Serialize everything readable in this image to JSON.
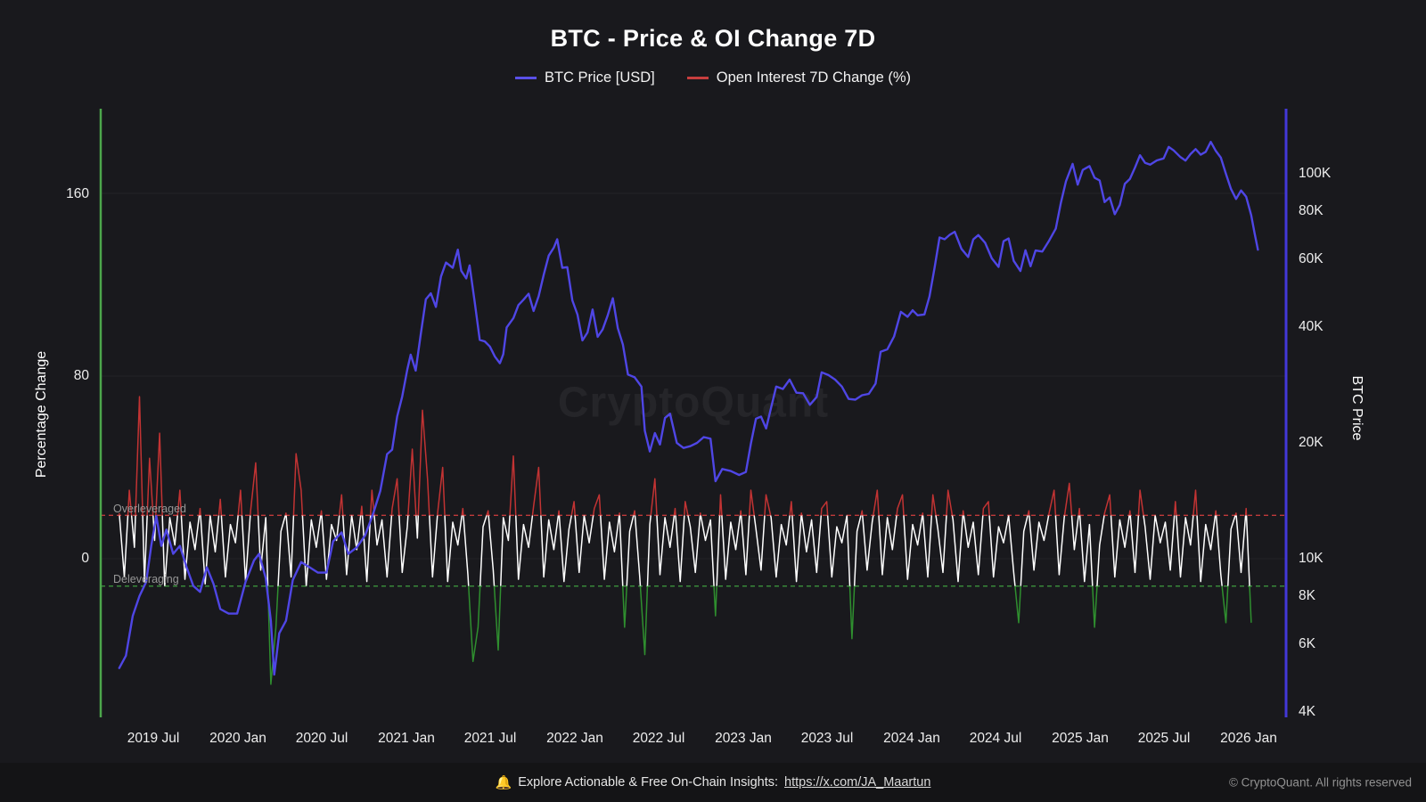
{
  "title": "BTC - Price & OI Change 7D",
  "legend": {
    "items": [
      {
        "label": "BTC Price [USD]",
        "color": "#5a50e8"
      },
      {
        "label": "Open Interest 7D Change (%)",
        "color": "#c73e3e"
      }
    ]
  },
  "left_axis": {
    "title": "Percentage Change",
    "ticks": [
      "0",
      "80",
      "160"
    ]
  },
  "right_axis": {
    "title": "BTC Price",
    "ticks": [
      "4K",
      "6K",
      "8K",
      "10K",
      "20K",
      "40K",
      "60K",
      "80K",
      "100K"
    ]
  },
  "x_axis": {
    "ticks": [
      "2019 Jul",
      "2020 Jan",
      "2020 Jul",
      "2021 Jan",
      "2021 Jul",
      "2022 Jan",
      "2022 Jul",
      "2023 Jan",
      "2023 Jul",
      "2024 Jan",
      "2024 Jul",
      "2025 Jan",
      "2025 Jul",
      "2026 Jan"
    ]
  },
  "annotations": {
    "overleveraged": {
      "label": "Overleveraged",
      "value_pct": 19,
      "color": "#c03a3a"
    },
    "deleveraging": {
      "label": "Deleveraging",
      "value_pct": -12,
      "color": "#3f9f3f"
    }
  },
  "watermark": "CryptoQuant",
  "footer": {
    "bell_icon": "🔔",
    "message": "Explore Actionable & Free On-Chain Insights:",
    "link": "https://x.com/JA_Maartun",
    "copyright": "© CryptoQuant. All rights reserved"
  },
  "chart_data": {
    "type": "line",
    "title": "BTC - Price & OI Change 7D",
    "x_domain": [
      2019.19,
      2026.22
    ],
    "x_tick_labels": [
      "2019 Jul",
      "2020 Jan",
      "2020 Jul",
      "2021 Jan",
      "2021 Jul",
      "2022 Jan",
      "2022 Jul",
      "2023 Jan",
      "2023 Jul",
      "2024 Jan",
      "2024 Jul",
      "2025 Jan",
      "2025 Jul",
      "2026 Jan"
    ],
    "left_axis": {
      "label": "Percentage Change",
      "range": [
        -70,
        197
      ],
      "ticks": [
        0,
        80,
        160
      ],
      "grid": true
    },
    "right_axis": {
      "label": "BTC Price",
      "scale": "log",
      "ticks_usd": [
        4000,
        6000,
        8000,
        10000,
        20000,
        40000,
        60000,
        80000,
        100000
      ]
    },
    "thresholds": {
      "overleveraged_pct": 19,
      "deleveraging_pct": -12
    },
    "legend_position": "top",
    "series": [
      {
        "name": "BTC Price [USD]",
        "axis": "right",
        "unit": "USD thousands",
        "color": "#4f46e5",
        "points": [
          [
            2019.3,
            5.2
          ],
          [
            2019.34,
            5.6
          ],
          [
            2019.38,
            7.1
          ],
          [
            2019.42,
            8.0
          ],
          [
            2019.46,
            8.7
          ],
          [
            2019.49,
            10.8
          ],
          [
            2019.52,
            12.9
          ],
          [
            2019.55,
            10.8
          ],
          [
            2019.58,
            11.9
          ],
          [
            2019.62,
            10.3
          ],
          [
            2019.66,
            10.8
          ],
          [
            2019.7,
            9.5
          ],
          [
            2019.74,
            8.5
          ],
          [
            2019.78,
            8.2
          ],
          [
            2019.82,
            9.5
          ],
          [
            2019.86,
            8.6
          ],
          [
            2019.9,
            7.4
          ],
          [
            2019.95,
            7.2
          ],
          [
            2020.0,
            7.2
          ],
          [
            2020.05,
            8.7
          ],
          [
            2020.1,
            9.9
          ],
          [
            2020.13,
            10.3
          ],
          [
            2020.17,
            8.9
          ],
          [
            2020.2,
            6.9
          ],
          [
            2020.22,
            5.0
          ],
          [
            2020.25,
            6.4
          ],
          [
            2020.29,
            6.9
          ],
          [
            2020.33,
            8.8
          ],
          [
            2020.38,
            9.8
          ],
          [
            2020.43,
            9.5
          ],
          [
            2020.48,
            9.2
          ],
          [
            2020.53,
            9.2
          ],
          [
            2020.57,
            11.1
          ],
          [
            2020.62,
            11.7
          ],
          [
            2020.66,
            10.3
          ],
          [
            2020.71,
            10.7
          ],
          [
            2020.76,
            11.5
          ],
          [
            2020.81,
            13.2
          ],
          [
            2020.85,
            15.0
          ],
          [
            2020.89,
            18.7
          ],
          [
            2020.92,
            19.2
          ],
          [
            2020.95,
            23.4
          ],
          [
            2020.98,
            26.4
          ],
          [
            2021.01,
            31.0
          ],
          [
            2021.03,
            33.9
          ],
          [
            2021.06,
            30.8
          ],
          [
            2021.09,
            38.3
          ],
          [
            2021.12,
            47.2
          ],
          [
            2021.15,
            48.9
          ],
          [
            2021.18,
            45.1
          ],
          [
            2021.21,
            54.1
          ],
          [
            2021.24,
            58.8
          ],
          [
            2021.28,
            57.0
          ],
          [
            2021.31,
            63.5
          ],
          [
            2021.33,
            56.0
          ],
          [
            2021.36,
            53.5
          ],
          [
            2021.38,
            57.8
          ],
          [
            2021.41,
            46.5
          ],
          [
            2021.44,
            37.0
          ],
          [
            2021.47,
            36.7
          ],
          [
            2021.5,
            35.6
          ],
          [
            2021.53,
            33.5
          ],
          [
            2021.56,
            32.2
          ],
          [
            2021.58,
            34.0
          ],
          [
            2021.6,
            39.9
          ],
          [
            2021.64,
            42.2
          ],
          [
            2021.67,
            45.6
          ],
          [
            2021.7,
            47.1
          ],
          [
            2021.73,
            48.8
          ],
          [
            2021.76,
            44.0
          ],
          [
            2021.79,
            48.1
          ],
          [
            2021.82,
            54.7
          ],
          [
            2021.85,
            61.3
          ],
          [
            2021.88,
            64.3
          ],
          [
            2021.9,
            67.6
          ],
          [
            2021.93,
            57.0
          ],
          [
            2021.96,
            57.2
          ],
          [
            2021.99,
            46.9
          ],
          [
            2022.02,
            43.1
          ],
          [
            2022.05,
            36.9
          ],
          [
            2022.08,
            38.7
          ],
          [
            2022.11,
            44.4
          ],
          [
            2022.14,
            37.7
          ],
          [
            2022.17,
            39.4
          ],
          [
            2022.2,
            42.9
          ],
          [
            2022.23,
            47.5
          ],
          [
            2022.26,
            39.7
          ],
          [
            2022.29,
            36.0
          ],
          [
            2022.32,
            30.1
          ],
          [
            2022.36,
            29.6
          ],
          [
            2022.4,
            28.0
          ],
          [
            2022.42,
            21.5
          ],
          [
            2022.45,
            19.0
          ],
          [
            2022.48,
            21.2
          ],
          [
            2022.51,
            19.8
          ],
          [
            2022.54,
            23.2
          ],
          [
            2022.57,
            23.8
          ],
          [
            2022.61,
            20.0
          ],
          [
            2022.65,
            19.4
          ],
          [
            2022.69,
            19.6
          ],
          [
            2022.73,
            20.0
          ],
          [
            2022.77,
            20.7
          ],
          [
            2022.81,
            20.5
          ],
          [
            2022.84,
            15.9
          ],
          [
            2022.88,
            17.1
          ],
          [
            2022.93,
            16.9
          ],
          [
            2022.98,
            16.5
          ],
          [
            2023.02,
            16.8
          ],
          [
            2023.05,
            19.9
          ],
          [
            2023.08,
            23.1
          ],
          [
            2023.11,
            23.4
          ],
          [
            2023.14,
            21.8
          ],
          [
            2023.17,
            24.7
          ],
          [
            2023.2,
            28.0
          ],
          [
            2023.24,
            27.6
          ],
          [
            2023.28,
            29.2
          ],
          [
            2023.32,
            27.0
          ],
          [
            2023.36,
            26.9
          ],
          [
            2023.4,
            25.1
          ],
          [
            2023.44,
            26.3
          ],
          [
            2023.47,
            30.5
          ],
          [
            2023.51,
            30.0
          ],
          [
            2023.55,
            29.2
          ],
          [
            2023.59,
            28.0
          ],
          [
            2023.63,
            26.0
          ],
          [
            2023.67,
            25.9
          ],
          [
            2023.71,
            26.6
          ],
          [
            2023.75,
            26.8
          ],
          [
            2023.79,
            28.5
          ],
          [
            2023.82,
            34.5
          ],
          [
            2023.86,
            35.0
          ],
          [
            2023.9,
            37.8
          ],
          [
            2023.94,
            43.8
          ],
          [
            2023.98,
            42.5
          ],
          [
            2024.01,
            44.2
          ],
          [
            2024.04,
            42.9
          ],
          [
            2024.08,
            43.1
          ],
          [
            2024.11,
            48.0
          ],
          [
            2024.14,
            57.0
          ],
          [
            2024.17,
            68.3
          ],
          [
            2024.2,
            67.6
          ],
          [
            2024.23,
            69.4
          ],
          [
            2024.26,
            70.7
          ],
          [
            2024.3,
            63.8
          ],
          [
            2024.34,
            60.8
          ],
          [
            2024.37,
            67.5
          ],
          [
            2024.4,
            69.3
          ],
          [
            2024.44,
            66.2
          ],
          [
            2024.48,
            60.3
          ],
          [
            2024.52,
            57.3
          ],
          [
            2024.55,
            66.8
          ],
          [
            2024.58,
            67.9
          ],
          [
            2024.61,
            59.4
          ],
          [
            2024.65,
            55.9
          ],
          [
            2024.68,
            63.3
          ],
          [
            2024.71,
            57.5
          ],
          [
            2024.74,
            63.2
          ],
          [
            2024.78,
            62.8
          ],
          [
            2024.82,
            67.0
          ],
          [
            2024.86,
            72.0
          ],
          [
            2024.89,
            84.0
          ],
          [
            2024.92,
            95.5
          ],
          [
            2024.96,
            106.1
          ],
          [
            2024.99,
            93.7
          ],
          [
            2025.02,
            102.3
          ],
          [
            2025.06,
            104.7
          ],
          [
            2025.09,
            97.7
          ],
          [
            2025.12,
            96.1
          ],
          [
            2025.15,
            84.4
          ],
          [
            2025.18,
            86.8
          ],
          [
            2025.21,
            78.5
          ],
          [
            2025.24,
            83.0
          ],
          [
            2025.27,
            94.2
          ],
          [
            2025.3,
            97.0
          ],
          [
            2025.33,
            103.8
          ],
          [
            2025.36,
            111.7
          ],
          [
            2025.39,
            106.8
          ],
          [
            2025.42,
            105.6
          ],
          [
            2025.46,
            108.3
          ],
          [
            2025.5,
            109.6
          ],
          [
            2025.53,
            117.4
          ],
          [
            2025.56,
            115.0
          ],
          [
            2025.6,
            110.5
          ],
          [
            2025.63,
            108.2
          ],
          [
            2025.66,
            112.5
          ],
          [
            2025.69,
            115.9
          ],
          [
            2025.72,
            112.1
          ],
          [
            2025.75,
            114.0
          ],
          [
            2025.78,
            121.0
          ],
          [
            2025.81,
            114.6
          ],
          [
            2025.84,
            110.1
          ],
          [
            2025.87,
            100.0
          ],
          [
            2025.9,
            91.3
          ],
          [
            2025.93,
            86.0
          ],
          [
            2025.96,
            90.5
          ],
          [
            2025.99,
            87.2
          ],
          [
            2026.02,
            78.0
          ],
          [
            2026.04,
            70.2
          ],
          [
            2026.06,
            63.5
          ]
        ]
      },
      {
        "name": "Open Interest 7D Change (%)",
        "axis": "left",
        "unit": "%",
        "colors": {
          "normal": "#ffffff",
          "above_overleveraged": "#c23333",
          "below_deleveraging": "#2f8f2f"
        },
        "x_start": 2019.3,
        "x_step": 0.03,
        "values": [
          20,
          -8,
          30,
          5,
          71,
          -10,
          44,
          8,
          55,
          -12,
          18,
          6,
          30,
          -9,
          16,
          4,
          22,
          -11,
          19,
          3,
          26,
          -8,
          15,
          7,
          30,
          -10,
          21,
          42,
          -5,
          18,
          -55,
          -30,
          12,
          20,
          -8,
          46,
          30,
          -12,
          17,
          5,
          21,
          -9,
          15,
          8,
          28,
          -7,
          19,
          4,
          23,
          -10,
          30,
          6,
          17,
          -8,
          22,
          35,
          -6,
          14,
          48,
          9,
          65,
          35,
          -8,
          20,
          40,
          -10,
          16,
          6,
          22,
          -7,
          -45,
          -30,
          14,
          21,
          -5,
          -40,
          18,
          8,
          45,
          -9,
          15,
          5,
          23,
          40,
          -8,
          17,
          4,
          21,
          -10,
          13,
          25,
          -6,
          19,
          7,
          22,
          28,
          -9,
          16,
          3,
          20,
          -30,
          12,
          21,
          -8,
          -42,
          15,
          35,
          -7,
          18,
          5,
          22,
          -10,
          25,
          14,
          -6,
          20,
          8,
          17,
          -25,
          28,
          -9,
          16,
          4,
          21,
          -7,
          30,
          13,
          -5,
          28,
          18,
          -8,
          15,
          6,
          25,
          -10,
          20,
          3,
          17,
          -6,
          22,
          25,
          -8,
          14,
          7,
          19,
          -35,
          12,
          21,
          -5,
          16,
          30,
          -7,
          18,
          4,
          22,
          28,
          -9,
          15,
          6,
          20,
          -8,
          28,
          13,
          -6,
          30,
          17,
          -10,
          21,
          5,
          16,
          -7,
          22,
          25,
          -8,
          14,
          7,
          19,
          -6,
          -28,
          12,
          21,
          -5,
          16,
          8,
          20,
          30,
          -7,
          18,
          33,
          4,
          22,
          -10,
          15,
          -30,
          6,
          20,
          28,
          -8,
          17,
          5,
          21,
          -6,
          30,
          14,
          -9,
          19,
          7,
          16,
          -5,
          25,
          -8,
          18,
          6,
          30,
          -10,
          15,
          4,
          21,
          -7,
          -28,
          13,
          20,
          -6,
          22,
          -28
        ]
      }
    ]
  }
}
